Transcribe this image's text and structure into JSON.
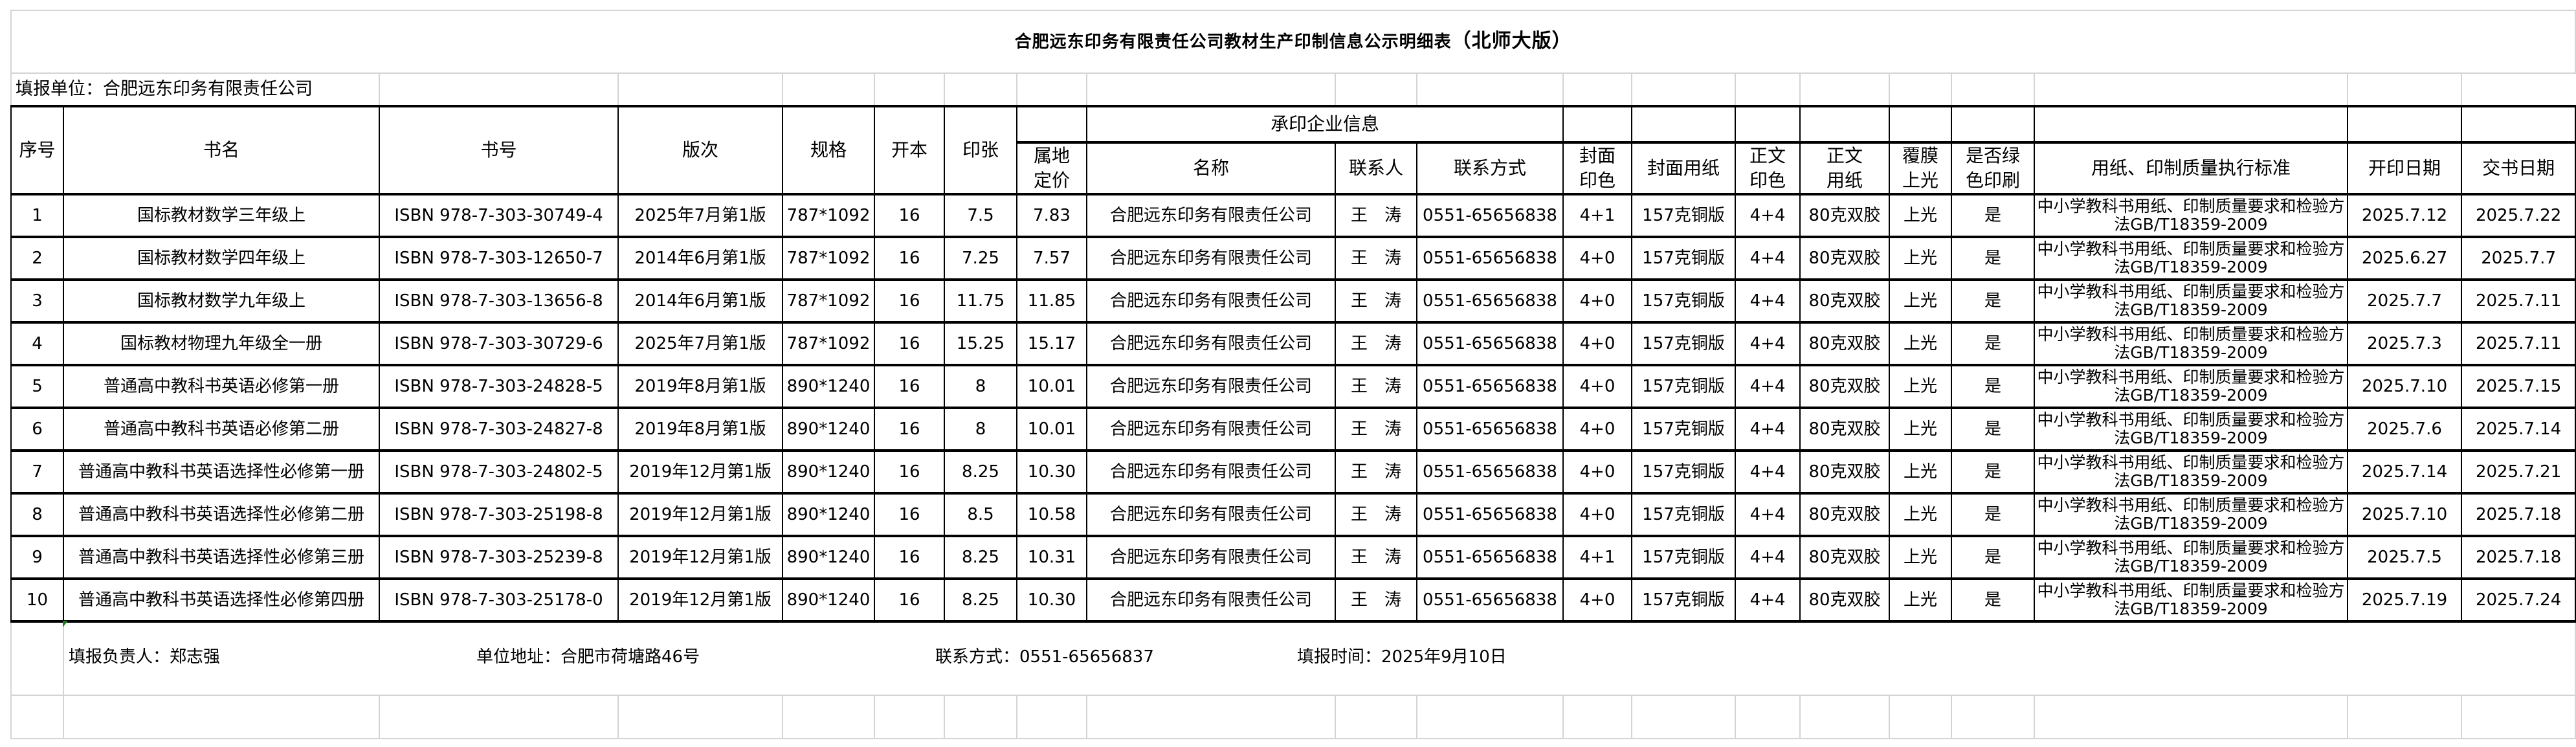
{
  "title": "合肥远东印务有限责任公司教材生产印制信息公示明细表",
  "title_suffix": "（北师大版）",
  "reporting_unit": "填报单位：合肥远东印务有限责任公司",
  "headers": {
    "seq": "序号",
    "book_name": "书名",
    "isbn": "书号",
    "edition": "版次",
    "format": "规格",
    "folio": "开本",
    "sheets": "印张",
    "price": "属地定价",
    "printer_group": "承印企业信息",
    "printer_name": "名称",
    "contact_person": "联系人",
    "contact": "联系方式",
    "cover_color": "封面印色",
    "cover_paper": "封面用纸",
    "body_color": "正文印色",
    "body_paper": "正文用纸",
    "lamination": "覆膜上光",
    "green_print": "是否绿色印刷",
    "standard": "用纸、印制质量执行标准",
    "start_date": "开印日期",
    "delivery_date": "交书日期"
  },
  "rows": [
    {
      "seq": "1",
      "book_name": "国标教材数学三年级上",
      "isbn": "ISBN 978-7-303-30749-4",
      "edition": "2025年7月第1版",
      "format": "787*1092",
      "folio": "16",
      "sheets": "7.5",
      "price": "7.83",
      "printer_name": "合肥远东印务有限责任公司",
      "contact_person": "王　涛",
      "contact": "0551-65656838",
      "cover_color": "4+1",
      "cover_paper": "157克铜版",
      "body_color": "4+4",
      "body_paper": "80克双胶",
      "lamination": "上光",
      "green_print": "是",
      "standard": "中小学教科书用纸、印制质量要求和检验方法GB/T18359-2009",
      "start_date": "2025.7.12",
      "delivery_date": "2025.7.22"
    },
    {
      "seq": "2",
      "book_name": "国标教材数学四年级上",
      "isbn": "ISBN 978-7-303-12650-7",
      "edition": "2014年6月第1版",
      "format": "787*1092",
      "folio": "16",
      "sheets": "7.25",
      "price": "7.57",
      "printer_name": "合肥远东印务有限责任公司",
      "contact_person": "王　涛",
      "contact": "0551-65656838",
      "cover_color": "4+0",
      "cover_paper": "157克铜版",
      "body_color": "4+4",
      "body_paper": "80克双胶",
      "lamination": "上光",
      "green_print": "是",
      "standard": "中小学教科书用纸、印制质量要求和检验方法GB/T18359-2009",
      "start_date": "2025.6.27",
      "delivery_date": "2025.7.7"
    },
    {
      "seq": "3",
      "book_name": "国标教材数学九年级上",
      "isbn": "ISBN 978-7-303-13656-8",
      "edition": "2014年6月第1版",
      "format": "787*1092",
      "folio": "16",
      "sheets": "11.75",
      "price": "11.85",
      "printer_name": "合肥远东印务有限责任公司",
      "contact_person": "王　涛",
      "contact": "0551-65656838",
      "cover_color": "4+0",
      "cover_paper": "157克铜版",
      "body_color": "4+4",
      "body_paper": "80克双胶",
      "lamination": "上光",
      "green_print": "是",
      "standard": "中小学教科书用纸、印制质量要求和检验方法GB/T18359-2009",
      "start_date": "2025.7.7",
      "delivery_date": "2025.7.11"
    },
    {
      "seq": "4",
      "book_name": "国标教材物理九年级全一册",
      "isbn": "ISBN 978-7-303-30729-6",
      "edition": "2025年7月第1版",
      "format": "787*1092",
      "folio": "16",
      "sheets": "15.25",
      "price": "15.17",
      "printer_name": "合肥远东印务有限责任公司",
      "contact_person": "王　涛",
      "contact": "0551-65656838",
      "cover_color": "4+0",
      "cover_paper": "157克铜版",
      "body_color": "4+4",
      "body_paper": "80克双胶",
      "lamination": "上光",
      "green_print": "是",
      "standard": "中小学教科书用纸、印制质量要求和检验方法GB/T18359-2009",
      "start_date": "2025.7.3",
      "delivery_date": "2025.7.11"
    },
    {
      "seq": "5",
      "book_name": "普通高中教科书英语必修第一册",
      "isbn": "ISBN 978-7-303-24828-5",
      "edition": "2019年8月第1版",
      "format": "890*1240",
      "folio": "16",
      "sheets": "8",
      "price": "10.01",
      "printer_name": "合肥远东印务有限责任公司",
      "contact_person": "王　涛",
      "contact": "0551-65656838",
      "cover_color": "4+0",
      "cover_paper": "157克铜版",
      "body_color": "4+4",
      "body_paper": "80克双胶",
      "lamination": "上光",
      "green_print": "是",
      "standard": "中小学教科书用纸、印制质量要求和检验方法GB/T18359-2009",
      "start_date": "2025.7.10",
      "delivery_date": "2025.7.15"
    },
    {
      "seq": "6",
      "book_name": "普通高中教科书英语必修第二册",
      "isbn": "ISBN 978-7-303-24827-8",
      "edition": "2019年8月第1版",
      "format": "890*1240",
      "folio": "16",
      "sheets": "8",
      "price": "10.01",
      "printer_name": "合肥远东印务有限责任公司",
      "contact_person": "王　涛",
      "contact": "0551-65656838",
      "cover_color": "4+0",
      "cover_paper": "157克铜版",
      "body_color": "4+4",
      "body_paper": "80克双胶",
      "lamination": "上光",
      "green_print": "是",
      "standard": "中小学教科书用纸、印制质量要求和检验方法GB/T18359-2009",
      "start_date": "2025.7.6",
      "delivery_date": "2025.7.14"
    },
    {
      "seq": "7",
      "book_name": "普通高中教科书英语选择性必修第一册",
      "isbn": "ISBN 978-7-303-24802-5",
      "edition": "2019年12月第1版",
      "format": "890*1240",
      "folio": "16",
      "sheets": "8.25",
      "price": "10.30",
      "printer_name": "合肥远东印务有限责任公司",
      "contact_person": "王　涛",
      "contact": "0551-65656838",
      "cover_color": "4+0",
      "cover_paper": "157克铜版",
      "body_color": "4+4",
      "body_paper": "80克双胶",
      "lamination": "上光",
      "green_print": "是",
      "standard": "中小学教科书用纸、印制质量要求和检验方法GB/T18359-2009",
      "start_date": "2025.7.14",
      "delivery_date": "2025.7.21"
    },
    {
      "seq": "8",
      "book_name": "普通高中教科书英语选择性必修第二册",
      "isbn": "ISBN 978-7-303-25198-8",
      "edition": "2019年12月第1版",
      "format": "890*1240",
      "folio": "16",
      "sheets": "8.5",
      "price": "10.58",
      "printer_name": "合肥远东印务有限责任公司",
      "contact_person": "王　涛",
      "contact": "0551-65656838",
      "cover_color": "4+0",
      "cover_paper": "157克铜版",
      "body_color": "4+4",
      "body_paper": "80克双胶",
      "lamination": "上光",
      "green_print": "是",
      "standard": "中小学教科书用纸、印制质量要求和检验方法GB/T18359-2009",
      "start_date": "2025.7.10",
      "delivery_date": "2025.7.18"
    },
    {
      "seq": "9",
      "book_name": "普通高中教科书英语选择性必修第三册",
      "isbn": "ISBN 978-7-303-25239-8",
      "edition": "2019年12月第1版",
      "format": "890*1240",
      "folio": "16",
      "sheets": "8.25",
      "price": "10.31",
      "printer_name": "合肥远东印务有限责任公司",
      "contact_person": "王　涛",
      "contact": "0551-65656838",
      "cover_color": "4+1",
      "cover_paper": "157克铜版",
      "body_color": "4+4",
      "body_paper": "80克双胶",
      "lamination": "上光",
      "green_print": "是",
      "standard": "中小学教科书用纸、印制质量要求和检验方法GB/T18359-2009",
      "start_date": "2025.7.5",
      "delivery_date": "2025.7.18"
    },
    {
      "seq": "10",
      "book_name": "普通高中教科书英语选择性必修第四册",
      "isbn": "ISBN 978-7-303-25178-0",
      "edition": "2019年12月第1版",
      "format": "890*1240",
      "folio": "16",
      "sheets": "8.25",
      "price": "10.30",
      "printer_name": "合肥远东印务有限责任公司",
      "contact_person": "王　涛",
      "contact": "0551-65656838",
      "cover_color": "4+0",
      "cover_paper": "157克铜版",
      "body_color": "4+4",
      "body_paper": "80克双胶",
      "lamination": "上光",
      "green_print": "是",
      "standard": "中小学教科书用纸、印制质量要求和检验方法GB/T18359-2009",
      "start_date": "2025.7.19",
      "delivery_date": "2025.7.24"
    }
  ],
  "footer": {
    "responsible": "填报负责人：郑志强",
    "address": "单位地址：合肥市荷塘路46号",
    "contact": "联系方式：0551-65656837",
    "date": "填报时间：2025年9月10日"
  },
  "colors": {
    "border": "#000000",
    "grid": "#d4d4d4",
    "error_indicator": "#1e7b1e"
  }
}
